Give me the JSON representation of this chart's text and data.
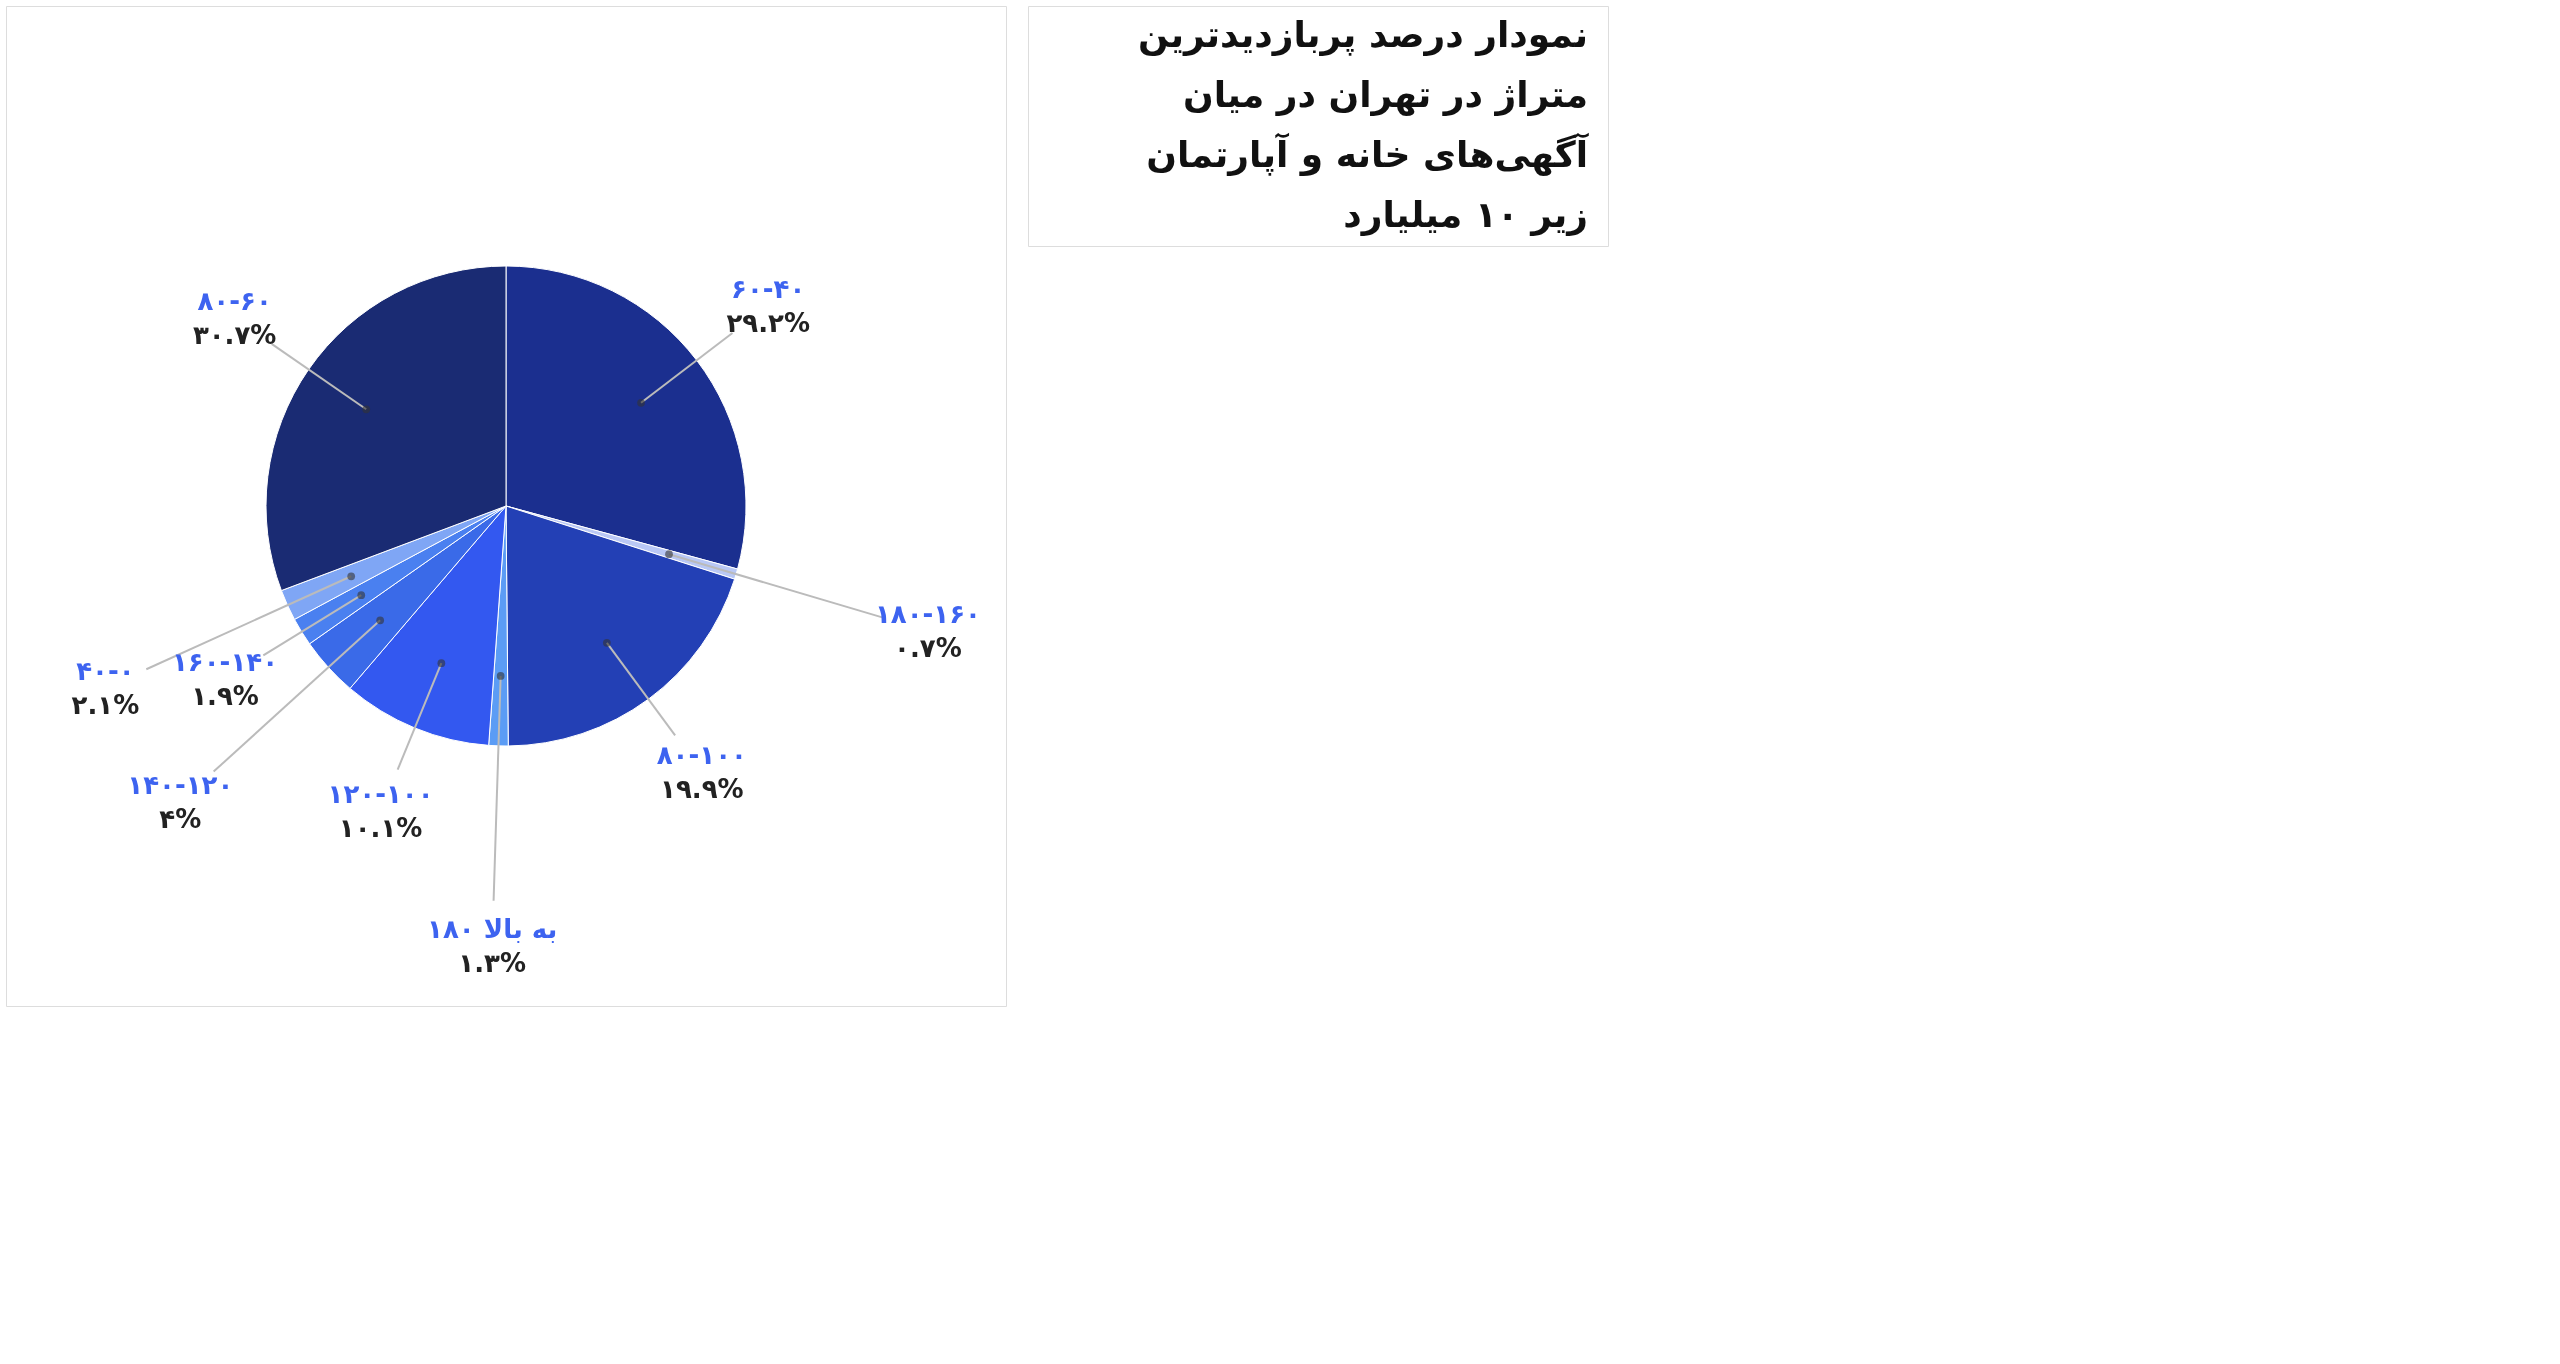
{
  "chart_data": {
    "type": "pie",
    "title": "نمودار درصد پربازدیدترین متراژ در تهران در میان آگهی‌های خانه و آپارتمان زیر ۱۰ میلیارد",
    "categories": [
      "۶۰-۴۰",
      "۱۸۰-۱۶۰",
      "۸۰-۱۰۰",
      "۱۸۰ به بالا",
      "۱۲۰-۱۰۰",
      "۱۴۰-۱۲۰",
      "۱۶۰-۱۴۰",
      "۴۰-۰",
      "۸۰-۶۰"
    ],
    "values": [
      29.2,
      0.7,
      19.9,
      1.3,
      10.1,
      4,
      1.9,
      2.1,
      30.7
    ],
    "value_labels": [
      "۲۹.۲%",
      "۰.۷%",
      "۱۹.۹%",
      "۱.۳%",
      "۱۰.۱%",
      "۴%",
      "۱.۹%",
      "۲.۱%",
      "۳۰.۷%"
    ],
    "colors": [
      "#1b2f8f",
      "#b9c8f5",
      "#2340b5",
      "#5b9cf5",
      "#3358f0",
      "#3a6ae8",
      "#4a80f0",
      "#7fa6f5",
      "#1a2b73"
    ]
  }
}
